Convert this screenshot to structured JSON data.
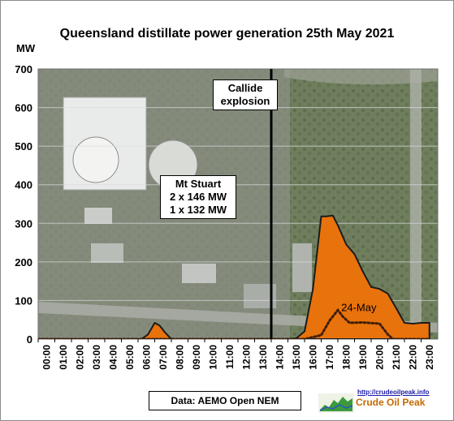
{
  "chart_data": {
    "type": "area",
    "title": "Queensland distillate power generation 25th May 2021",
    "ylabel": "MW",
    "ylim": [
      0,
      700
    ],
    "yticks": [
      "700",
      "600",
      "500",
      "400",
      "300",
      "200",
      "100",
      "0"
    ],
    "xticks": [
      "00:00",
      "01:00",
      "02:00",
      "03:00",
      "04:00",
      "05:00",
      "06:00",
      "07:00",
      "08:00",
      "09:00",
      "10:00",
      "11:00",
      "12:00",
      "13:00",
      "14:00",
      "15:00",
      "16:00",
      "17:00",
      "18:00",
      "19:00",
      "20:00",
      "21:00",
      "22:00",
      "23:00"
    ],
    "series": [
      {
        "name": "",
        "style": "filled area",
        "color": "#e8720c",
        "points": [
          [
            0,
            0
          ],
          [
            6.2,
            0
          ],
          [
            6.6,
            12
          ],
          [
            7.0,
            42
          ],
          [
            7.3,
            35
          ],
          [
            7.6,
            18
          ],
          [
            8.0,
            0
          ],
          [
            15.0,
            0
          ],
          [
            15.5,
            2
          ],
          [
            16.0,
            20
          ],
          [
            16.5,
            130
          ],
          [
            17.0,
            318
          ],
          [
            17.3,
            318
          ],
          [
            17.7,
            320
          ],
          [
            18.0,
            295
          ],
          [
            18.5,
            245
          ],
          [
            19.0,
            220
          ],
          [
            19.5,
            175
          ],
          [
            20.0,
            135
          ],
          [
            20.5,
            130
          ],
          [
            21.0,
            118
          ],
          [
            21.5,
            80
          ],
          [
            22.0,
            42
          ],
          [
            22.5,
            40
          ],
          [
            23.0,
            42
          ],
          [
            23.5,
            42
          ]
        ]
      },
      {
        "name": "24-May",
        "style": "dotted line",
        "color": "#3d1f0a",
        "points": [
          [
            0,
            0
          ],
          [
            15.0,
            0
          ],
          [
            16.0,
            0
          ],
          [
            17.0,
            10
          ],
          [
            17.5,
            48
          ],
          [
            18.0,
            75
          ],
          [
            18.3,
            58
          ],
          [
            18.7,
            42
          ],
          [
            19.5,
            43
          ],
          [
            20.5,
            40
          ],
          [
            21.0,
            12
          ],
          [
            21.3,
            0
          ],
          [
            23.5,
            0
          ]
        ]
      }
    ],
    "event_line": {
      "x": 14.0,
      "color": "#000000"
    },
    "annotations": {
      "callide": [
        "Callide",
        "explosion"
      ],
      "mt_stuart": [
        "Mt Stuart",
        "2 x 146 MW",
        "1 x 132 MW"
      ],
      "series_label": "24-May"
    },
    "grid": true,
    "legend": "none"
  },
  "source": "Data: AEMO Open NEM",
  "logo": {
    "url": "http://crudeoilpeak.info",
    "name": "Crude Oil Peak"
  },
  "colors": {
    "area": "#e8720c",
    "background_map": "#7a8a6c",
    "grid": "#dcdcdc"
  }
}
